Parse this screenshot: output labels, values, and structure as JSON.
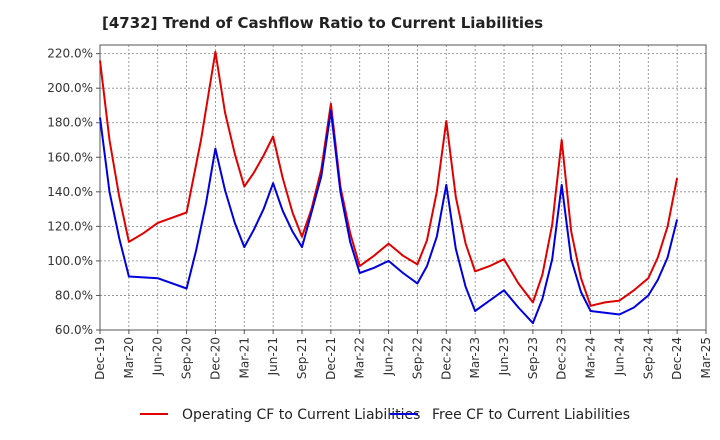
{
  "chart_data": {
    "type": "line",
    "title": "[4732]  Trend of Cashflow Ratio to Current Liabilities",
    "xlabel": "",
    "ylabel": "",
    "ylim": [
      60,
      225
    ],
    "x_ticks": [
      "Dec-19",
      "Mar-20",
      "Jun-20",
      "Sep-20",
      "Dec-20",
      "Mar-21",
      "Jun-21",
      "Sep-21",
      "Dec-21",
      "Mar-22",
      "Jun-22",
      "Sep-22",
      "Dec-22",
      "Mar-23",
      "Jun-23",
      "Sep-23",
      "Dec-23",
      "Mar-24",
      "Jun-24",
      "Sep-24",
      "Dec-24",
      "Mar-25"
    ],
    "y_ticks": [
      60,
      80,
      100,
      120,
      140,
      160,
      180,
      200,
      220
    ],
    "y_tick_labels": [
      "60.0%",
      "80.0%",
      "100.0%",
      "120.0%",
      "140.0%",
      "160.0%",
      "180.0%",
      "200.0%",
      "220.0%"
    ],
    "grid": true,
    "legend_position": "bottom",
    "series": [
      {
        "name": "Operating CF to Current Liabilities",
        "color": "#e00000",
        "points": [
          [
            0,
            216
          ],
          [
            0.33,
            170
          ],
          [
            0.67,
            137
          ],
          [
            1,
            111
          ],
          [
            1.5,
            116
          ],
          [
            2,
            122
          ],
          [
            3,
            128
          ],
          [
            3.5,
            170
          ],
          [
            4,
            221
          ],
          [
            4.33,
            186
          ],
          [
            4.67,
            162
          ],
          [
            5,
            143
          ],
          [
            5.33,
            151
          ],
          [
            5.67,
            161
          ],
          [
            6,
            172
          ],
          [
            6.33,
            148
          ],
          [
            6.67,
            128
          ],
          [
            7,
            114
          ],
          [
            7.33,
            130
          ],
          [
            7.67,
            153
          ],
          [
            8,
            191
          ],
          [
            8.33,
            143
          ],
          [
            8.67,
            116
          ],
          [
            9,
            97
          ],
          [
            9.5,
            103
          ],
          [
            10,
            110
          ],
          [
            10.5,
            103
          ],
          [
            11,
            98
          ],
          [
            11.33,
            112
          ],
          [
            11.67,
            140
          ],
          [
            12,
            181
          ],
          [
            12.33,
            137
          ],
          [
            12.67,
            110
          ],
          [
            13,
            94
          ],
          [
            13.5,
            97
          ],
          [
            14,
            101
          ],
          [
            14.5,
            87
          ],
          [
            15,
            76
          ],
          [
            15.33,
            92
          ],
          [
            15.67,
            121
          ],
          [
            16,
            170
          ],
          [
            16.33,
            117
          ],
          [
            16.67,
            90
          ],
          [
            17,
            74
          ],
          [
            17.5,
            76
          ],
          [
            18,
            77
          ],
          [
            18.5,
            83
          ],
          [
            19,
            90
          ],
          [
            19.33,
            102
          ],
          [
            19.67,
            120
          ],
          [
            20,
            148
          ]
        ]
      },
      {
        "name": "Free CF to Current Liabilities",
        "color": "#0000dd",
        "points": [
          [
            0,
            183
          ],
          [
            0.33,
            140
          ],
          [
            0.67,
            113
          ],
          [
            1,
            91
          ],
          [
            2,
            90
          ],
          [
            3,
            84
          ],
          [
            3.33,
            106
          ],
          [
            3.67,
            133
          ],
          [
            4,
            165
          ],
          [
            4.33,
            141
          ],
          [
            4.67,
            122
          ],
          [
            5,
            108
          ],
          [
            5.33,
            118
          ],
          [
            5.67,
            130
          ],
          [
            6,
            145
          ],
          [
            6.33,
            129
          ],
          [
            6.67,
            117
          ],
          [
            7,
            108
          ],
          [
            7.33,
            128
          ],
          [
            7.67,
            149
          ],
          [
            8,
            187
          ],
          [
            8.33,
            140
          ],
          [
            8.67,
            111
          ],
          [
            9,
            93
          ],
          [
            9.5,
            96
          ],
          [
            10,
            100
          ],
          [
            10.5,
            93
          ],
          [
            11,
            87
          ],
          [
            11.33,
            97
          ],
          [
            11.67,
            114
          ],
          [
            12,
            144
          ],
          [
            12.33,
            107
          ],
          [
            12.67,
            85
          ],
          [
            13,
            71
          ],
          [
            13.5,
            77
          ],
          [
            14,
            83
          ],
          [
            14.5,
            73
          ],
          [
            15,
            64
          ],
          [
            15.33,
            78
          ],
          [
            15.67,
            101
          ],
          [
            16,
            144
          ],
          [
            16.33,
            101
          ],
          [
            16.67,
            82
          ],
          [
            17,
            71
          ],
          [
            18,
            69
          ],
          [
            18.5,
            73
          ],
          [
            19,
            80
          ],
          [
            19.33,
            89
          ],
          [
            19.67,
            102
          ],
          [
            20,
            124
          ]
        ]
      }
    ]
  }
}
